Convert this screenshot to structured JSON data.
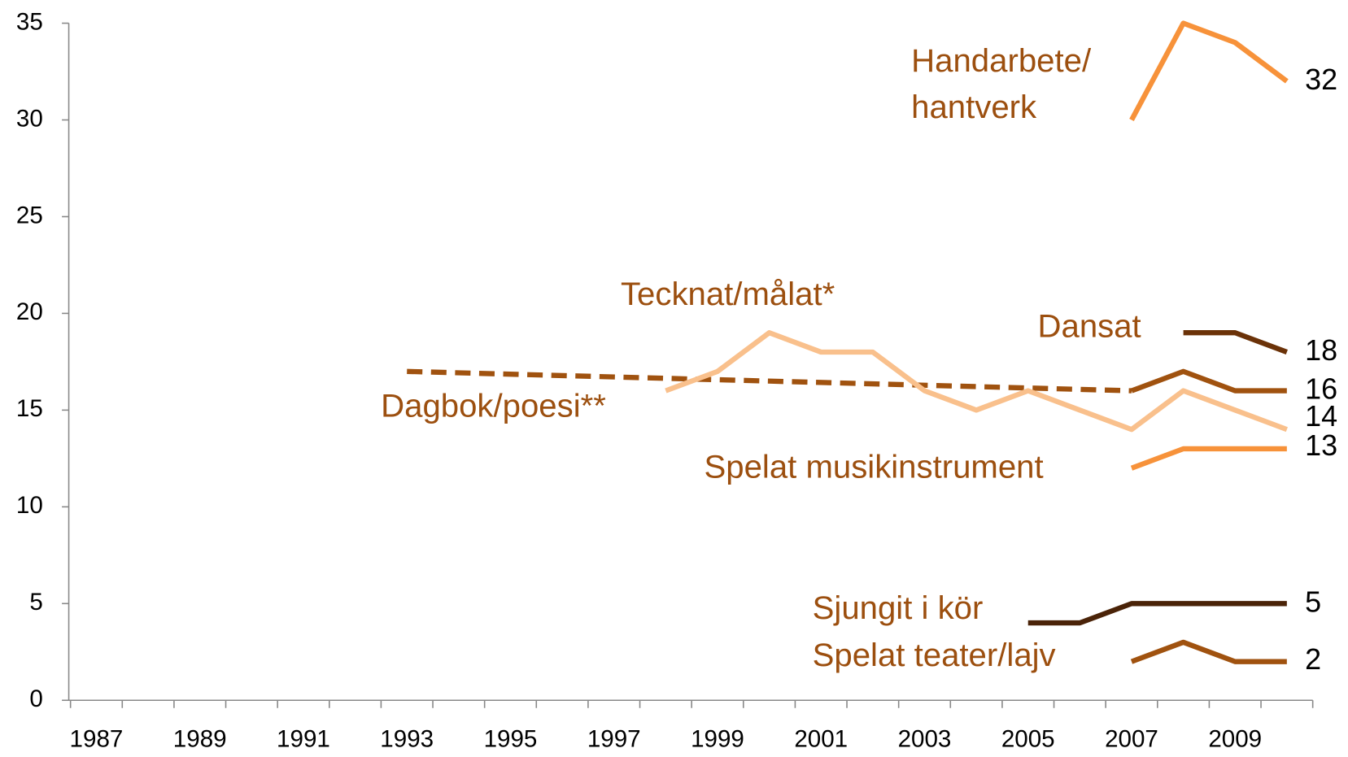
{
  "chart_data": {
    "type": "line",
    "categories": [
      "1987",
      null,
      "1989",
      null,
      "1991",
      null,
      "1993",
      null,
      "1995",
      null,
      "1997",
      null,
      "1999",
      null,
      "2001",
      null,
      "2003",
      null,
      "2005",
      null,
      "2007",
      null,
      "2009",
      null
    ],
    "ylim": [
      0,
      35
    ],
    "yticks": [
      0,
      5,
      10,
      15,
      20,
      25,
      30,
      35
    ],
    "end_labels": true,
    "series": [
      {
        "name": "Handarbete/hantverk",
        "color": "#f7923a",
        "values": [
          null,
          null,
          null,
          null,
          null,
          null,
          null,
          null,
          null,
          null,
          null,
          null,
          null,
          null,
          null,
          null,
          null,
          null,
          null,
          null,
          30,
          35,
          34,
          32
        ]
      },
      {
        "name": "Dansat",
        "color": "#6b3208",
        "values": [
          null,
          null,
          null,
          null,
          null,
          null,
          null,
          null,
          null,
          null,
          null,
          null,
          null,
          null,
          null,
          null,
          null,
          null,
          null,
          null,
          null,
          19,
          19,
          18
        ]
      },
      {
        "name": "Dagbok/poesi**",
        "color": "#a0520f",
        "dashed": true,
        "connect_gaps": true,
        "values": [
          null,
          null,
          null,
          null,
          null,
          null,
          17,
          null,
          null,
          null,
          null,
          null,
          null,
          null,
          null,
          null,
          null,
          null,
          null,
          null,
          16,
          null,
          null,
          null
        ]
      },
      {
        "color": "#a0520f",
        "values": [
          null,
          null,
          null,
          null,
          null,
          null,
          null,
          null,
          null,
          null,
          null,
          null,
          null,
          null,
          null,
          null,
          null,
          null,
          null,
          null,
          16,
          17,
          16,
          16
        ]
      },
      {
        "name": "Tecknat/målat*",
        "color": "#f9c08c",
        "values": [
          null,
          null,
          null,
          null,
          null,
          null,
          null,
          null,
          null,
          null,
          null,
          16,
          17,
          19,
          18,
          18,
          16,
          15,
          16,
          15,
          14,
          16,
          15,
          14
        ]
      },
      {
        "name": "Spelat musikinstrument",
        "color": "#f7923a",
        "values": [
          null,
          null,
          null,
          null,
          null,
          null,
          null,
          null,
          null,
          null,
          null,
          null,
          null,
          null,
          null,
          null,
          null,
          null,
          null,
          null,
          12,
          13,
          13,
          13
        ]
      },
      {
        "name": "Sjungit i kör",
        "color": "#4a2308",
        "values": [
          null,
          null,
          null,
          null,
          null,
          null,
          null,
          null,
          null,
          null,
          null,
          null,
          null,
          null,
          null,
          null,
          null,
          null,
          4,
          4,
          5,
          5,
          5,
          5
        ]
      },
      {
        "name": "Spelat teater/lajv",
        "color": "#a0520f",
        "values": [
          null,
          null,
          null,
          null,
          null,
          null,
          null,
          null,
          null,
          null,
          null,
          null,
          null,
          null,
          null,
          null,
          null,
          null,
          null,
          null,
          2,
          3,
          2,
          2
        ]
      }
    ]
  }
}
